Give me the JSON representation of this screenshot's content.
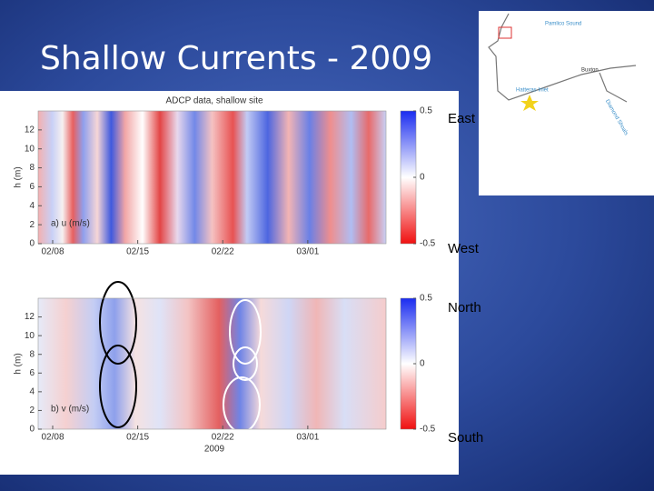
{
  "slide": {
    "title": "Shallow Currents - 2009"
  },
  "figure": {
    "title": "ADCP data, shallow site",
    "xlabel": "2009",
    "panels": [
      {
        "label": "a) u (m/s)",
        "ylabel": "h (m)",
        "ylim": [
          0,
          14
        ],
        "yticks": [
          0,
          2,
          4,
          6,
          8,
          10,
          12
        ],
        "xticks": [
          "02/08",
          "02/15",
          "02/22",
          "03/01"
        ],
        "clim": [
          -0.5,
          0.5
        ],
        "cticks": [
          0.5,
          0,
          -0.5
        ]
      },
      {
        "label": "b) v (m/s)",
        "ylabel": "h (m)",
        "ylim": [
          0,
          14
        ],
        "yticks": [
          0,
          2,
          4,
          6,
          8,
          10,
          12
        ],
        "xticks": [
          "02/08",
          "02/15",
          "02/22",
          "03/01"
        ],
        "clim": [
          -0.5,
          0.5
        ],
        "cticks": [
          0.5,
          0,
          -0.5
        ]
      }
    ]
  },
  "directions": [
    "East",
    "West",
    "North",
    "South"
  ],
  "map": {
    "labels": [
      "Pamlico Sound",
      "Buxton",
      "Hatteras Inlet",
      "Diamond Shoals"
    ]
  }
}
